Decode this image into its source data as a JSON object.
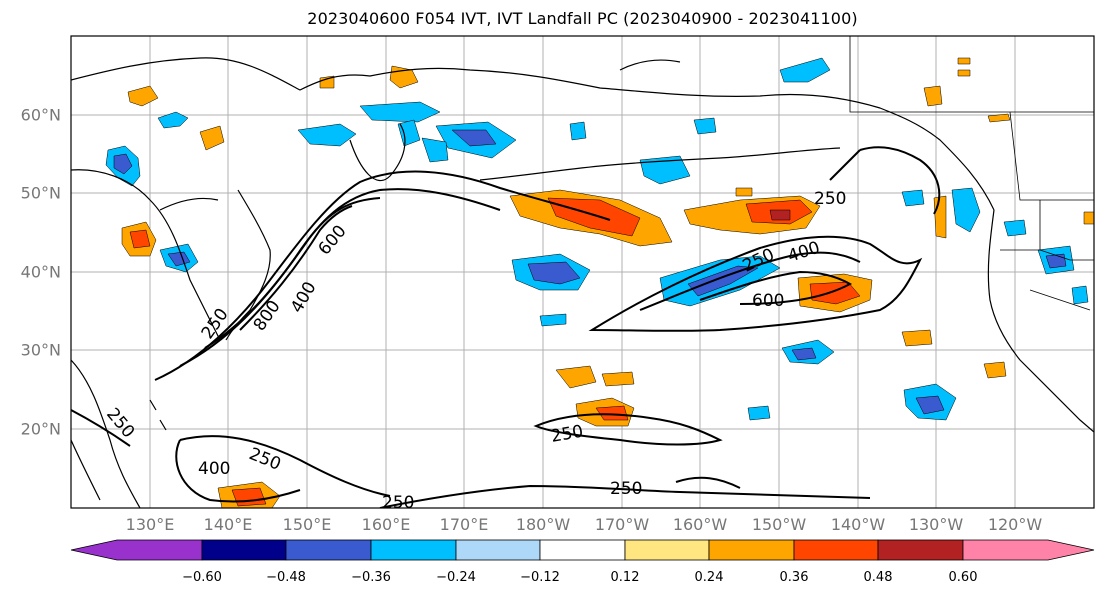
{
  "title": "2023040600 F054 IVT, IVT Landfall PC (2023040900 - 2023041100)",
  "lat_ticks": [
    "60°N",
    "50°N",
    "40°N",
    "30°N",
    "20°N"
  ],
  "lon_ticks": [
    "130°E",
    "140°E",
    "150°E",
    "160°E",
    "170°E",
    "180°W",
    "170°W",
    "160°W",
    "150°W",
    "140°W",
    "130°W",
    "120°W"
  ],
  "contour_labels": [
    "250",
    "400",
    "600",
    "800",
    "250",
    "250",
    "400",
    "600",
    "250",
    "250",
    "250",
    "400",
    "250",
    "250"
  ],
  "colorbar": {
    "ticks": [
      "−0.60",
      "−0.48",
      "−0.36",
      "−0.24",
      "−0.12",
      "0.12",
      "0.24",
      "0.36",
      "0.48",
      "0.60"
    ],
    "colors": [
      "#9932cc",
      "#00008b",
      "#3a5bd0",
      "#00bfff",
      "#add8f7",
      "#ffffff",
      "#ffe680",
      "#ffa500",
      "#ff4500",
      "#b22222",
      "#ff82a8"
    ]
  }
}
